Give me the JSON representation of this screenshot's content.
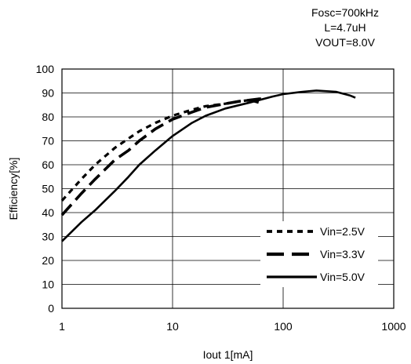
{
  "annotation": {
    "lines": [
      "Fosc=700kHz",
      "L=4.7uH",
      "VOUT=8.0V"
    ]
  },
  "chart_data": {
    "type": "line",
    "title": "",
    "xlabel": "Iout 1[mA]",
    "ylabel": "Efficiency[%]",
    "x_scale": "log",
    "xlim": [
      1,
      1000
    ],
    "ylim": [
      0,
      100
    ],
    "x_ticks": [
      "1",
      "10",
      "100",
      "1000"
    ],
    "y_ticks": [
      "0",
      "10",
      "20",
      "30",
      "40",
      "50",
      "60",
      "70",
      "80",
      "90",
      "100"
    ],
    "grid": true,
    "legend_position": "bottom-right",
    "series": [
      {
        "name": "Vin=2.5V",
        "style": "dotted",
        "x": [
          1,
          1.5,
          2,
          3,
          4,
          5,
          7,
          10,
          15,
          20,
          30,
          40,
          50,
          60
        ],
        "y": [
          45,
          54,
          60,
          67,
          71,
          74,
          77.5,
          80.5,
          83,
          84.5,
          85.5,
          86.5,
          87,
          86
        ]
      },
      {
        "name": "Vin=3.3V",
        "style": "dashed",
        "x": [
          1,
          1.5,
          2,
          3,
          4,
          5,
          7,
          10,
          15,
          20,
          30,
          40,
          50,
          60,
          70
        ],
        "y": [
          39,
          48,
          54,
          62,
          66,
          70,
          75,
          79,
          82,
          84,
          85.5,
          86.5,
          87,
          87.5,
          87.5
        ]
      },
      {
        "name": "Vin=5.0V",
        "style": "solid",
        "x": [
          1,
          1.5,
          2,
          3,
          4,
          5,
          7,
          10,
          15,
          20,
          30,
          50,
          80,
          100,
          150,
          200,
          300,
          400,
          450
        ],
        "y": [
          28,
          36,
          41,
          49,
          55,
          60,
          66,
          72,
          77.5,
          80.5,
          83.5,
          86,
          88.5,
          89.5,
          90.5,
          91,
          90.5,
          89,
          88
        ]
      }
    ]
  }
}
